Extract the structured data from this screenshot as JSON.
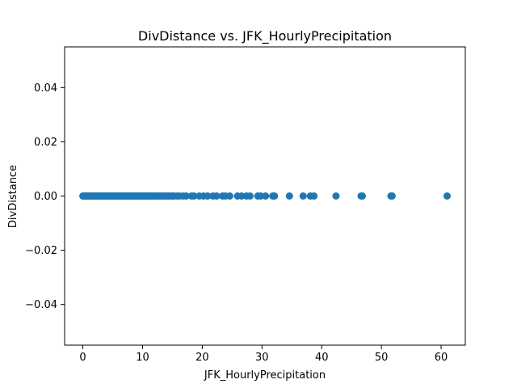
{
  "chart_data": {
    "type": "scatter",
    "title": "DivDistance vs. JFK_HourlyPrecipitation",
    "xlabel": "JFK_HourlyPrecipitation",
    "ylabel": "DivDistance",
    "xlim": [
      -3.05,
      64.05
    ],
    "ylim": [
      -0.055,
      0.055
    ],
    "xticks": [
      0,
      10,
      20,
      30,
      40,
      50,
      60
    ],
    "xtick_labels": [
      "0",
      "10",
      "20",
      "30",
      "40",
      "50",
      "60"
    ],
    "yticks": [
      0.04,
      0.02,
      0.0,
      -0.02,
      -0.04
    ],
    "ytick_labels": [
      "0.04",
      "0.02",
      "0.00",
      "−0.02",
      "−0.04"
    ],
    "grid": false,
    "marker_color": "#1f77b4",
    "series": [
      {
        "x": [
          0,
          0.2,
          0.4,
          0.6,
          0.8,
          1.0,
          1.2,
          1.4,
          1.6,
          1.8,
          2.0,
          2.2,
          2.4,
          2.6,
          2.8,
          3.0,
          3.2,
          3.4,
          3.6,
          3.8,
          4.0,
          4.2,
          4.4,
          4.6,
          4.8,
          5.0,
          5.2,
          5.4,
          5.6,
          5.8,
          6.0,
          6.2,
          6.4,
          6.6,
          6.8,
          7.0,
          7.2,
          7.4,
          7.6,
          7.8,
          8.0,
          8.2,
          8.4,
          8.6,
          8.8,
          9.0,
          9.2,
          9.4,
          9.6,
          9.8,
          10.0,
          10.2,
          10.4,
          10.6,
          10.8,
          11.0,
          11.2,
          11.4,
          11.6,
          11.8,
          12.0,
          12.3,
          12.6,
          12.9,
          13.2,
          13.5,
          13.8,
          14.1,
          14.4,
          14.7,
          15.0,
          15.3,
          15.8,
          16.2,
          16.8,
          17.3,
          18.2,
          18.6,
          19.5,
          20.2,
          20.9,
          21.8,
          22.4,
          23.4,
          23.9,
          24.6,
          25.9,
          26.6,
          27.4,
          28.0,
          29.3,
          29.8,
          30.6,
          31.8,
          32.1,
          34.6,
          36.9,
          38.1,
          38.7,
          42.4,
          46.6,
          46.8,
          51.6,
          51.8,
          61.0
        ],
        "y": [
          0,
          0,
          0,
          0,
          0,
          0,
          0,
          0,
          0,
          0,
          0,
          0,
          0,
          0,
          0,
          0,
          0,
          0,
          0,
          0,
          0,
          0,
          0,
          0,
          0,
          0,
          0,
          0,
          0,
          0,
          0,
          0,
          0,
          0,
          0,
          0,
          0,
          0,
          0,
          0,
          0,
          0,
          0,
          0,
          0,
          0,
          0,
          0,
          0,
          0,
          0,
          0,
          0,
          0,
          0,
          0,
          0,
          0,
          0,
          0,
          0,
          0,
          0,
          0,
          0,
          0,
          0,
          0,
          0,
          0,
          0,
          0,
          0,
          0,
          0,
          0,
          0,
          0,
          0,
          0,
          0,
          0,
          0,
          0,
          0,
          0,
          0,
          0,
          0,
          0,
          0,
          0,
          0,
          0,
          0,
          0,
          0,
          0,
          0,
          0,
          0,
          0,
          0,
          0,
          0
        ]
      }
    ]
  }
}
